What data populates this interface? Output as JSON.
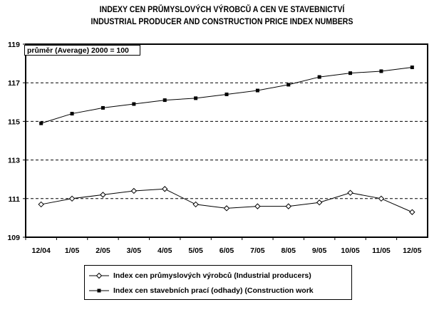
{
  "chart_data": {
    "type": "line",
    "title": "INDEXY CEN PRŮMYSLOVÝCH VÝROBCŮ A CEN VE STAVEBNICTVÍ",
    "subtitle": "INDUSTRIAL PRODUCER AND CONSTRUCTION PRICE INDEX NUMBERS",
    "annotation": "průměr (Average) 2000 = 100",
    "xlabel": "",
    "ylabel": "",
    "ylim": [
      109,
      119
    ],
    "yticks": [
      "109",
      "111",
      "113",
      "115",
      "117",
      "119"
    ],
    "grid": "dashed horizontal",
    "legend_position": "bottom",
    "categories": [
      "12/04",
      "1/05",
      "2/05",
      "3/05",
      "4/05",
      "5/05",
      "6/05",
      "7/05",
      "8/05",
      "9/05",
      "10/05",
      "11/05",
      "12/05"
    ],
    "series": [
      {
        "name": "Index cen průmyslových výrobců  (Industrial producers)",
        "marker": "diamond-open",
        "values": [
          110.7,
          111.0,
          111.2,
          111.4,
          111.5,
          110.7,
          110.5,
          110.6,
          110.6,
          110.8,
          111.3,
          111.0,
          110.3
        ]
      },
      {
        "name": "Index cen stavebních prací (odhady) (Construction work",
        "marker": "square-filled",
        "values": [
          114.9,
          115.4,
          115.7,
          115.9,
          116.1,
          116.2,
          116.4,
          116.6,
          116.9,
          117.3,
          117.5,
          117.6,
          117.8
        ]
      }
    ]
  }
}
